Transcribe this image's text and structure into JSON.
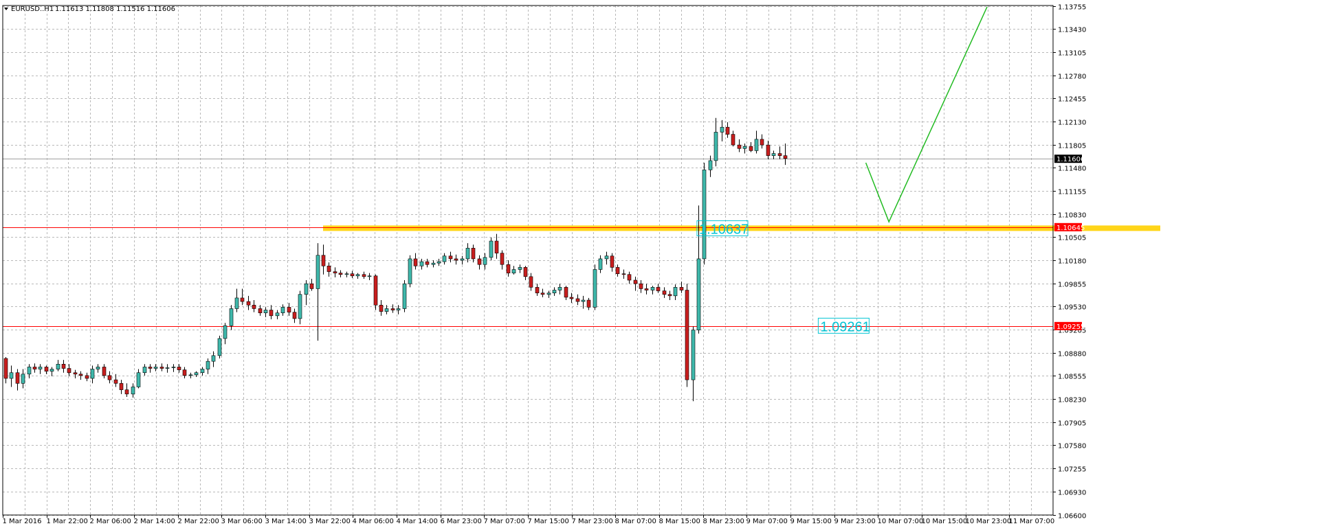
{
  "header": {
    "symbol": "EURUSD..H1",
    "ohlc": "1.11613 1.11808 1.11516 1.11606"
  },
  "colors": {
    "bull": "#3fb8ab",
    "bear": "#c81e1e",
    "grid": "#b8b8b8",
    "background": "#ffffff",
    "support_line": "#ff0000",
    "zone": "#ffd000",
    "projection": "#22bb22",
    "annotation": "#00c4d4",
    "bid_line": "#a0a0a0"
  },
  "chart_data": {
    "type": "candlestick",
    "title": "",
    "ylim": [
      1.066,
      1.1376
    ],
    "yticks": [
      "1.13755",
      "1.13430",
      "1.13105",
      "1.12780",
      "1.12455",
      "1.12130",
      "1.11805",
      "1.11480",
      "1.11155",
      "1.10830",
      "1.10505",
      "1.10180",
      "1.09855",
      "1.09530",
      "1.09205",
      "1.08880",
      "1.08555",
      "1.08230",
      "1.07905",
      "1.07580",
      "1.07255",
      "1.06930",
      "1.06600"
    ],
    "xticks": [
      "1 Mar 2016",
      "1 Mar 22:00",
      "2 Mar 06:00",
      "2 Mar 14:00",
      "2 Mar 22:00",
      "3 Mar 06:00",
      "3 Mar 14:00",
      "3 Mar 22:00",
      "4 Mar 06:00",
      "4 Mar 14:00",
      "6 Mar 23:00",
      "7 Mar 07:00",
      "7 Mar 15:00",
      "7 Mar 23:00",
      "8 Mar 07:00",
      "8 Mar 15:00",
      "8 Mar 23:00",
      "9 Mar 07:00",
      "9 Mar 15:00",
      "9 Mar 23:00",
      "10 Mar 07:00",
      "10 Mar 15:00",
      "10 Mar 23:00",
      "11 Mar 07:00"
    ],
    "candles": [
      [
        1.088,
        1.0882,
        1.0845,
        1.0852
      ],
      [
        1.0852,
        1.087,
        1.084,
        1.086
      ],
      [
        1.086,
        1.0865,
        1.0835,
        1.0845
      ],
      [
        1.0845,
        1.0865,
        1.0838,
        1.0858
      ],
      [
        1.0858,
        1.0872,
        1.0852,
        1.0868
      ],
      [
        1.0868,
        1.0873,
        1.086,
        1.0865
      ],
      [
        1.0865,
        1.0872,
        1.0858,
        1.0868
      ],
      [
        1.0868,
        1.087,
        1.0858,
        1.0862
      ],
      [
        1.0862,
        1.0868,
        1.0855,
        1.0865
      ],
      [
        1.0865,
        1.0878,
        1.0862,
        1.0872
      ],
      [
        1.0872,
        1.0878,
        1.086,
        1.0866
      ],
      [
        1.0866,
        1.0872,
        1.0855,
        1.086
      ],
      [
        1.086,
        1.0864,
        1.0852,
        1.0858
      ],
      [
        1.0858,
        1.0862,
        1.085,
        1.0856
      ],
      [
        1.0856,
        1.086,
        1.0848,
        1.0852
      ],
      [
        1.0852,
        1.087,
        1.0845,
        1.0865
      ],
      [
        1.0865,
        1.0872,
        1.086,
        1.0868
      ],
      [
        1.0868,
        1.0872,
        1.0852,
        1.0856
      ],
      [
        1.0856,
        1.0862,
        1.0845,
        1.085
      ],
      [
        1.085,
        1.0858,
        1.084,
        1.0845
      ],
      [
        1.0845,
        1.085,
        1.083,
        1.0836
      ],
      [
        1.0836,
        1.0845,
        1.0826,
        1.083
      ],
      [
        1.083,
        1.0845,
        1.0825,
        1.084
      ],
      [
        1.084,
        1.0865,
        1.0838,
        1.086
      ],
      [
        1.086,
        1.0872,
        1.0856,
        1.0868
      ],
      [
        1.0868,
        1.0872,
        1.086,
        1.0866
      ],
      [
        1.0866,
        1.0872,
        1.0862,
        1.0868
      ],
      [
        1.0868,
        1.0873,
        1.0862,
        1.0866
      ],
      [
        1.0866,
        1.0872,
        1.086,
        1.0867
      ],
      [
        1.0867,
        1.0872,
        1.0861,
        1.0868
      ],
      [
        1.0868,
        1.0872,
        1.086,
        1.0864
      ],
      [
        1.0864,
        1.0868,
        1.0852,
        1.0856
      ],
      [
        1.0856,
        1.086,
        1.0852,
        1.0857
      ],
      [
        1.0857,
        1.0862,
        1.0854,
        1.086
      ],
      [
        1.086,
        1.0868,
        1.0856,
        1.0865
      ],
      [
        1.0865,
        1.088,
        1.0858,
        1.0876
      ],
      [
        1.0876,
        1.089,
        1.0868,
        1.0884
      ],
      [
        1.0884,
        1.0912,
        1.088,
        1.0908
      ],
      [
        1.0908,
        1.093,
        1.09,
        1.0926
      ],
      [
        1.0926,
        1.0955,
        1.092,
        1.095
      ],
      [
        1.095,
        1.0978,
        1.0945,
        1.0965
      ],
      [
        1.0965,
        1.0978,
        1.0955,
        1.096
      ],
      [
        1.096,
        1.0968,
        1.0948,
        1.0955
      ],
      [
        1.0955,
        1.0962,
        1.0945,
        1.095
      ],
      [
        1.095,
        1.0955,
        1.094,
        1.0944
      ],
      [
        1.0944,
        1.0952,
        1.0938,
        1.0948
      ],
      [
        1.0948,
        1.0955,
        1.0935,
        1.094
      ],
      [
        1.094,
        1.0948,
        1.0935,
        1.0944
      ],
      [
        1.0944,
        1.0956,
        1.094,
        1.0952
      ],
      [
        1.0952,
        1.0958,
        1.094,
        1.0945
      ],
      [
        1.0945,
        1.095,
        1.093,
        1.0936
      ],
      [
        1.0936,
        1.0975,
        1.0928,
        1.097
      ],
      [
        1.097,
        1.099,
        1.0955,
        1.0985
      ],
      [
        1.0985,
        1.0992,
        1.0975,
        1.0978
      ],
      [
        1.0978,
        1.1042,
        1.0905,
        1.1025
      ],
      [
        1.1025,
        1.104,
        1.0998,
        1.101
      ],
      [
        1.101,
        1.1015,
        1.0995,
        1.1002
      ],
      [
        1.1002,
        1.1008,
        1.0994,
        1.1
      ],
      [
        1.1,
        1.1004,
        1.0994,
        1.0998
      ],
      [
        1.0998,
        1.1002,
        1.0994,
        1.0999
      ],
      [
        1.0999,
        1.1003,
        1.0993,
        1.0996
      ],
      [
        1.0996,
        1.1,
        1.0992,
        1.0998
      ],
      [
        1.0998,
        1.1002,
        1.0992,
        1.0995
      ],
      [
        1.0995,
        1.1,
        1.099,
        1.0996
      ],
      [
        1.0996,
        1.0998,
        1.0948,
        1.0955
      ],
      [
        1.0955,
        1.0962,
        1.094,
        1.0946
      ],
      [
        1.0946,
        1.0955,
        1.0942,
        1.095
      ],
      [
        1.095,
        1.0956,
        1.0944,
        1.0948
      ],
      [
        1.0948,
        1.0955,
        1.0942,
        1.095
      ],
      [
        1.095,
        1.099,
        1.0945,
        1.0985
      ],
      [
        1.0985,
        1.1025,
        1.098,
        1.102
      ],
      [
        1.102,
        1.1028,
        1.1005,
        1.101
      ],
      [
        1.101,
        1.102,
        1.1005,
        1.1016
      ],
      [
        1.1016,
        1.102,
        1.1008,
        1.1012
      ],
      [
        1.1012,
        1.1018,
        1.1008,
        1.1014
      ],
      [
        1.1014,
        1.102,
        1.101,
        1.1016
      ],
      [
        1.1016,
        1.1028,
        1.1012,
        1.1024
      ],
      [
        1.1024,
        1.103,
        1.1015,
        1.102
      ],
      [
        1.102,
        1.1026,
        1.1012,
        1.1018
      ],
      [
        1.1018,
        1.1024,
        1.1012,
        1.102
      ],
      [
        1.102,
        1.1042,
        1.1015,
        1.1035
      ],
      [
        1.1035,
        1.104,
        1.1015,
        1.102
      ],
      [
        1.102,
        1.1025,
        1.1005,
        1.1012
      ],
      [
        1.1012,
        1.1028,
        1.1005,
        1.1022
      ],
      [
        1.1022,
        1.105,
        1.1018,
        1.1045
      ],
      [
        1.1045,
        1.1055,
        1.102,
        1.1028
      ],
      [
        1.1028,
        1.1032,
        1.1005,
        1.1012
      ],
      [
        1.1012,
        1.1018,
        1.0995,
        1.1
      ],
      [
        1.1,
        1.101,
        1.0998,
        1.1005
      ],
      [
        1.1005,
        1.1012,
        1.1,
        1.1008
      ],
      [
        1.1008,
        1.101,
        1.099,
        1.0995
      ],
      [
        1.0995,
        1.1,
        1.0975,
        1.098
      ],
      [
        1.098,
        1.0985,
        1.0968,
        1.0972
      ],
      [
        1.0972,
        1.0978,
        1.0966,
        1.097
      ],
      [
        1.097,
        1.0975,
        1.0965,
        1.0972
      ],
      [
        1.0972,
        1.098,
        1.0968,
        1.0976
      ],
      [
        1.0976,
        1.0985,
        1.097,
        1.098
      ],
      [
        1.098,
        1.0982,
        1.0962,
        1.0966
      ],
      [
        1.0966,
        1.0972,
        1.0958,
        1.0964
      ],
      [
        1.0964,
        1.097,
        1.0955,
        1.096
      ],
      [
        1.096,
        1.0968,
        1.095,
        1.0962
      ],
      [
        1.0962,
        1.0965,
        1.0948,
        1.0952
      ],
      [
        1.0952,
        1.1012,
        1.0948,
        1.1005
      ],
      [
        1.1005,
        1.1025,
        1.1,
        1.102
      ],
      [
        1.102,
        1.103,
        1.1012,
        1.1024
      ],
      [
        1.1024,
        1.1028,
        1.1002,
        1.1008
      ],
      [
        1.1008,
        1.1012,
        1.0995,
        1.0999
      ],
      [
        1.0999,
        1.1005,
        1.0992,
        1.0998
      ],
      [
        1.0998,
        1.1002,
        1.0985,
        1.099
      ],
      [
        1.099,
        1.0995,
        1.0975,
        1.0985
      ],
      [
        1.0985,
        1.099,
        1.0972,
        1.0978
      ],
      [
        1.0978,
        1.0985,
        1.097,
        1.0976
      ],
      [
        1.0976,
        1.0982,
        1.097,
        1.098
      ],
      [
        1.098,
        1.0985,
        1.0972,
        1.0975
      ],
      [
        1.0975,
        1.098,
        1.0965,
        1.097
      ],
      [
        1.097,
        1.0975,
        1.0962,
        1.0968
      ],
      [
        1.0968,
        1.0984,
        1.0962,
        1.098
      ],
      [
        1.098,
        1.0988,
        1.0972,
        1.0976
      ],
      [
        1.0976,
        1.0985,
        1.084,
        1.085
      ],
      [
        1.085,
        1.0925,
        1.082,
        1.092
      ],
      [
        1.092,
        1.1095,
        1.0915,
        1.102
      ],
      [
        1.102,
        1.1155,
        1.1012,
        1.1145
      ],
      [
        1.1145,
        1.1165,
        1.1135,
        1.1158
      ],
      [
        1.1158,
        1.1218,
        1.115,
        1.1198
      ],
      [
        1.1198,
        1.1215,
        1.1185,
        1.1205
      ],
      [
        1.1205,
        1.1212,
        1.119,
        1.1195
      ],
      [
        1.1195,
        1.12,
        1.1178,
        1.118
      ],
      [
        1.118,
        1.1188,
        1.117,
        1.1175
      ],
      [
        1.1175,
        1.1182,
        1.1168,
        1.1178
      ],
      [
        1.1178,
        1.1184,
        1.117,
        1.1172
      ],
      [
        1.1172,
        1.12,
        1.1168,
        1.1188
      ],
      [
        1.1188,
        1.1195,
        1.1175,
        1.118
      ],
      [
        1.118,
        1.1186,
        1.116,
        1.1165
      ],
      [
        1.1165,
        1.1172,
        1.116,
        1.1168
      ],
      [
        1.1168,
        1.1178,
        1.116,
        1.1165
      ],
      [
        1.1165,
        1.1182,
        1.1152,
        1.1161
      ]
    ],
    "current_price": "1.11606",
    "support_levels": [
      {
        "price": 1.10645,
        "label": "1.10645"
      },
      {
        "price": 1.09255,
        "label": "1.09255"
      }
    ],
    "zone": {
      "price": 1.1063,
      "from_bar": 55,
      "to_bar": 200
    },
    "annotations": [
      {
        "text": "1.10637",
        "bar": 120,
        "price": 1.1063
      },
      {
        "text": "1.09261",
        "bar": 141,
        "price": 1.0926
      }
    ],
    "projection_path": [
      {
        "bar": 149,
        "price": 1.1155
      },
      {
        "bar": 153,
        "price": 1.1072
      },
      {
        "bar": 170,
        "price": 1.1374
      }
    ]
  }
}
